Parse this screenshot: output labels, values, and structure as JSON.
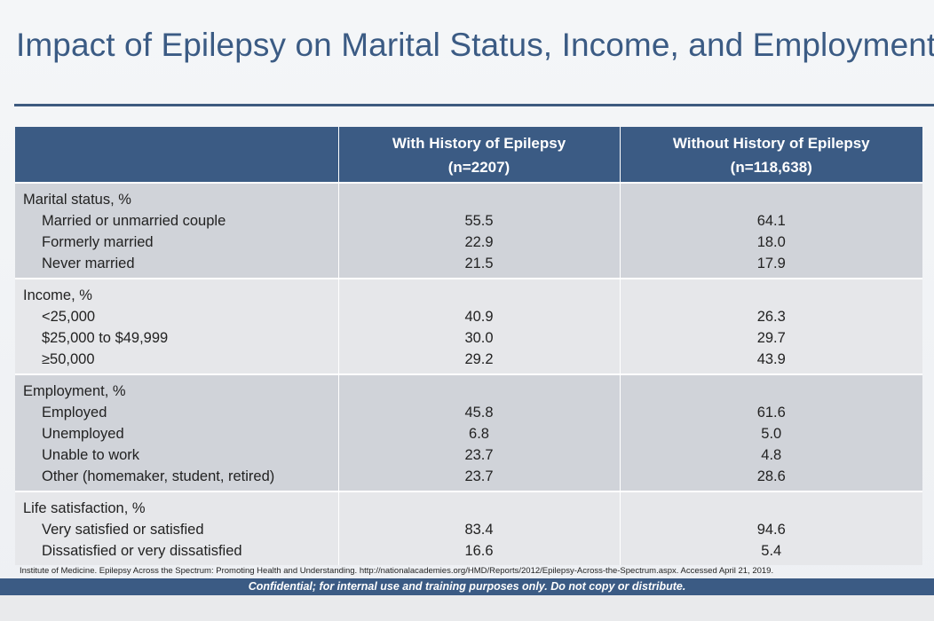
{
  "slide": {
    "title": "Impact of Epilepsy on Marital Status, Income, and Employment"
  },
  "table": {
    "headers": {
      "col2_line1": "With History of Epilepsy",
      "col2_line2": "(n=2207)",
      "col3_line1": "Without History of Epilepsy",
      "col3_line2": "(n=118,638)"
    },
    "groups": [
      {
        "title": "Marital status, %",
        "rows": [
          {
            "label": "Married or unmarried couple",
            "with": "55.5",
            "without": "64.1"
          },
          {
            "label": "Formerly married",
            "with": "22.9",
            "without": "18.0"
          },
          {
            "label": "Never married",
            "with": "21.5",
            "without": "17.9"
          }
        ]
      },
      {
        "title": "Income, %",
        "rows": [
          {
            "label": "<25,000",
            "with": "40.9",
            "without": "26.3"
          },
          {
            "label": "$25,000 to $49,999",
            "with": "30.0",
            "without": "29.7"
          },
          {
            "label": "≥50,000",
            "with": "29.2",
            "without": "43.9"
          }
        ]
      },
      {
        "title": "Employment, %",
        "rows": [
          {
            "label": "Employed",
            "with": "45.8",
            "without": "61.6"
          },
          {
            "label": "Unemployed",
            "with": "6.8",
            "without": "5.0"
          },
          {
            "label": "Unable to work",
            "with": "23.7",
            "without": "4.8"
          },
          {
            "label": "Other (homemaker, student, retired)",
            "with": "23.7",
            "without": "28.6"
          }
        ]
      },
      {
        "title": "Life satisfaction, %",
        "rows": [
          {
            "label": "Very satisfied or satisfied",
            "with": "83.4",
            "without": "94.6"
          },
          {
            "label": "Dissatisfied or very dissatisfied",
            "with": "16.6",
            "without": "5.4"
          }
        ]
      }
    ]
  },
  "citation": "Institute of Medicine. Epilepsy Across the Spectrum: Promoting Health and Understanding. http://nationalacademies.org/HMD/Reports/2012/Epilepsy-Across-the-Spectrum.aspx. Accessed April 21, 2019.",
  "footer": {
    "confidential": "Confidential; for internal use and training purposes only. Do not copy or distribute."
  },
  "colors": {
    "title_blue": "#3b5b84",
    "header_bg": "#3b5b84",
    "shade_dark": "#d0d3d9",
    "shade_light": "#e6e7ea"
  }
}
